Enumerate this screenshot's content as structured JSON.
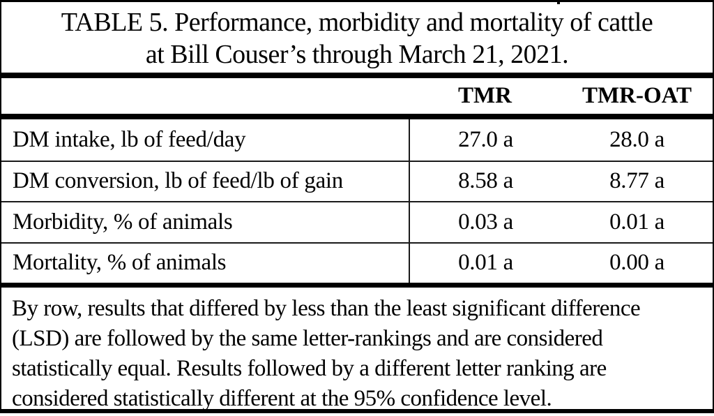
{
  "title": {
    "line1": "TABLE 5. Performance, morbidity and mortality of cattle",
    "line2": "at Bill Couser’s through March 21, 2021."
  },
  "table": {
    "columns": [
      "",
      "TMR",
      "TMR-OAT"
    ],
    "rows": [
      {
        "label": "DM intake, lb of feed/day",
        "tmr": "27.0 a",
        "tmr_oat": "28.0 a"
      },
      {
        "label": "DM conversion, lb of feed/lb of gain",
        "tmr": "8.58 a",
        "tmr_oat": "8.77 a"
      },
      {
        "label": "Morbidity, % of animals",
        "tmr": "0.03 a",
        "tmr_oat": "0.01 a"
      },
      {
        "label": "Mortality, % of animals",
        "tmr": "0.01 a",
        "tmr_oat": "0.00 a"
      }
    ]
  },
  "footnote": {
    "lines": [
      "By row, results that differed by less than the least significant difference",
      "(LSD) are followed by the same letter-rankings and are considered",
      "statistically equal. Results followed by a different letter ranking are",
      "considered statistically different at the 95% confidence level."
    ]
  },
  "colors": {
    "background": "#ffffff",
    "text": "#000000",
    "thick_rule": "#000000",
    "thin_rule": "#1a1a1a"
  }
}
